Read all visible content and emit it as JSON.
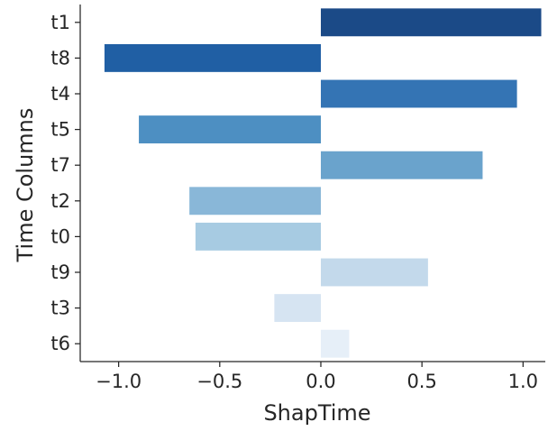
{
  "chart_data": {
    "type": "bar",
    "orientation": "horizontal",
    "title": "",
    "xlabel": "ShapTime",
    "ylabel": "Time Columns",
    "xlim": [
      -1.19,
      1.11
    ],
    "xticks": [
      -1.0,
      -0.5,
      0.0,
      0.5,
      1.0
    ],
    "xtick_labels": [
      "−1.0",
      "−0.5",
      "0.0",
      "0.5",
      "1.0"
    ],
    "grid": false,
    "legend": "none",
    "categories": [
      "t1",
      "t8",
      "t4",
      "t5",
      "t7",
      "t2",
      "t0",
      "t9",
      "t3",
      "t6"
    ],
    "values": [
      1.09,
      -1.07,
      0.97,
      -0.9,
      0.8,
      -0.65,
      -0.62,
      0.53,
      -0.23,
      0.14
    ],
    "colors": [
      "#1b4a87",
      "#205fa4",
      "#3474b4",
      "#4d8fc2",
      "#6aa3cc",
      "#89b7d8",
      "#a7cbe2",
      "#c3d9eb",
      "#d6e4f2",
      "#e6eff8"
    ]
  }
}
